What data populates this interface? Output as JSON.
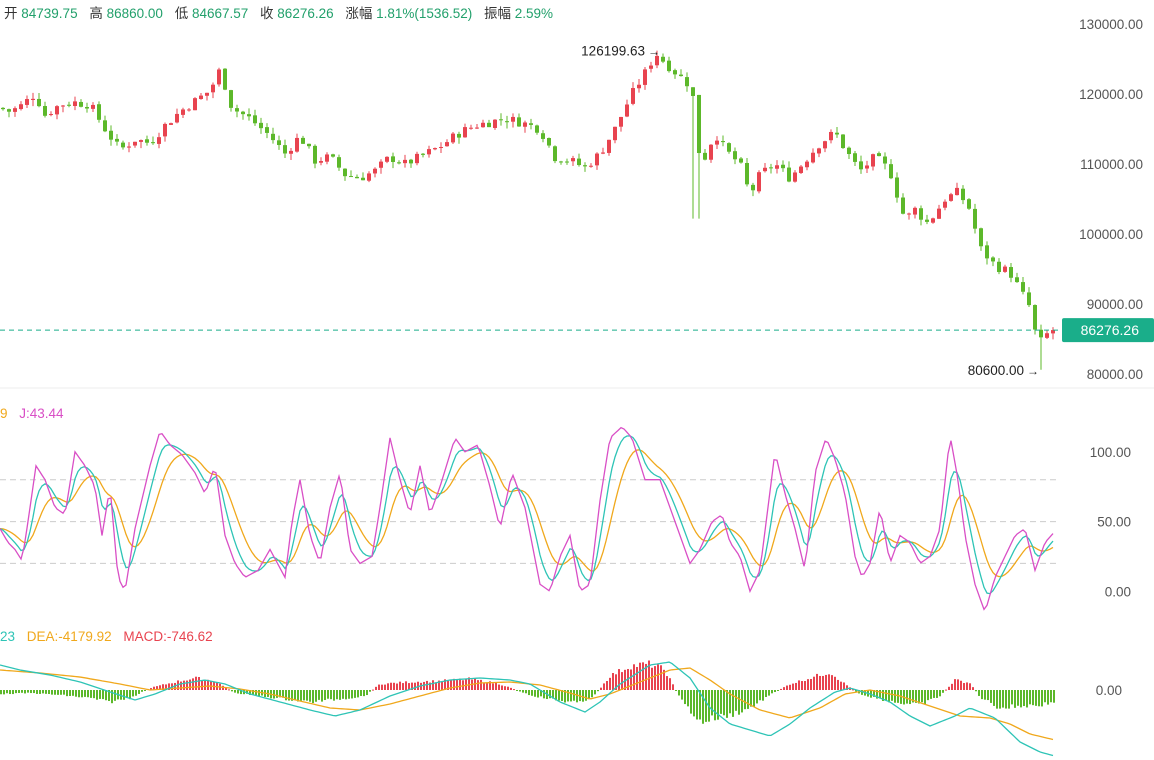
{
  "header": {
    "open_label": "开",
    "open": "84739.75",
    "high_label": "高",
    "high": "86860.00",
    "low_label": "低",
    "low": "84667.57",
    "close_label": "收",
    "close": "86276.26",
    "change_label": "涨幅",
    "change": "1.81%(1536.52)",
    "amplitude_label": "振幅",
    "amplitude": "2.59%"
  },
  "kdj_legend": {
    "d_partial": "9",
    "j": "J:43.44"
  },
  "macd_legend": {
    "dif_partial": "23",
    "dea": "DEA:-4179.92",
    "macd": "MACD:-746.62"
  },
  "colors": {
    "up": "#e8434f",
    "down": "#5cb82a",
    "k": "#2ec4b6",
    "d": "#f0a81c",
    "j": "#d94fc6",
    "last_price_bg": "#1aae8a"
  },
  "chart_data": [
    {
      "type": "candlestick",
      "ylim": [
        78000,
        132000
      ],
      "y_ticks": [
        "130000.00",
        "120000.00",
        "110000.00",
        "100000.00",
        "90000.00",
        "80000.00"
      ],
      "y_tick_values": [
        130000,
        120000,
        110000,
        100000,
        90000,
        80000
      ],
      "anchors": [
        [
          0,
          118000
        ],
        [
          10,
          117500
        ],
        [
          20,
          118200
        ],
        [
          35,
          120000
        ],
        [
          45,
          117000
        ],
        [
          60,
          118500
        ],
        [
          75,
          118800
        ],
        [
          90,
          118500
        ],
        [
          105,
          115000
        ],
        [
          120,
          112000
        ],
        [
          135,
          113500
        ],
        [
          150,
          113000
        ],
        [
          165,
          115500
        ],
        [
          180,
          117500
        ],
        [
          195,
          119000
        ],
        [
          210,
          120500
        ],
        [
          220,
          123500
        ],
        [
          232,
          118000
        ],
        [
          250,
          116500
        ],
        [
          270,
          114000
        ],
        [
          285,
          111500
        ],
        [
          300,
          114000
        ],
        [
          315,
          110500
        ],
        [
          330,
          111000
        ],
        [
          345,
          108500
        ],
        [
          360,
          108000
        ],
        [
          375,
          109000
        ],
        [
          390,
          111000
        ],
        [
          405,
          110000
        ],
        [
          420,
          111000
        ],
        [
          440,
          112500
        ],
        [
          460,
          114500
        ],
        [
          475,
          115500
        ],
        [
          490,
          116000
        ],
        [
          505,
          116500
        ],
        [
          520,
          116000
        ],
        [
          540,
          115000
        ],
        [
          555,
          111000
        ],
        [
          570,
          110500
        ],
        [
          585,
          109500
        ],
        [
          600,
          111500
        ],
        [
          615,
          115000
        ],
        [
          630,
          119500
        ],
        [
          645,
          123000
        ],
        [
          656,
          125800
        ],
        [
          665,
          124500
        ],
        [
          680,
          122500
        ],
        [
          692,
          121000
        ],
        [
          698,
          112000
        ],
        [
          705,
          111000
        ],
        [
          715,
          114500
        ],
        [
          725,
          112000
        ],
        [
          740,
          110000
        ],
        [
          750,
          105500
        ],
        [
          760,
          108500
        ],
        [
          775,
          110000
        ],
        [
          790,
          108000
        ],
        [
          805,
          110500
        ],
        [
          820,
          113000
        ],
        [
          835,
          114500
        ],
        [
          850,
          111000
        ],
        [
          860,
          109000
        ],
        [
          875,
          111000
        ],
        [
          890,
          109000
        ],
        [
          905,
          102000
        ],
        [
          915,
          103500
        ],
        [
          928,
          101500
        ],
        [
          945,
          105000
        ],
        [
          958,
          106000
        ],
        [
          970,
          103500
        ],
        [
          980,
          98000
        ],
        [
          995,
          95500
        ],
        [
          1010,
          94500
        ],
        [
          1020,
          92000
        ],
        [
          1030,
          89500
        ],
        [
          1038,
          84000
        ],
        [
          1045,
          85500
        ],
        [
          1055,
          86276
        ]
      ],
      "high_price": "126199.63",
      "high_price_value": 126199.63,
      "low_price": "80600.00",
      "low_price_value": 80600,
      "last_price": "86276.26",
      "last_price_value": 86276.26
    },
    {
      "type": "line",
      "name": "KDJ",
      "ylim": [
        -22,
        130
      ],
      "y_ticks": [
        "100.00",
        "50.00",
        "0.00"
      ],
      "y_tick_values": [
        100,
        50,
        0
      ],
      "reference_lines": [
        80,
        50,
        20
      ],
      "j_anchors": [
        [
          0,
          45
        ],
        [
          8,
          35
        ],
        [
          15,
          30
        ],
        [
          22,
          22
        ],
        [
          28,
          50
        ],
        [
          36,
          90
        ],
        [
          45,
          80
        ],
        [
          55,
          60
        ],
        [
          65,
          55
        ],
        [
          75,
          100
        ],
        [
          85,
          90
        ],
        [
          95,
          75
        ],
        [
          102,
          40
        ],
        [
          110,
          75
        ],
        [
          118,
          10
        ],
        [
          125,
          0
        ],
        [
          135,
          45
        ],
        [
          150,
          90
        ],
        [
          160,
          115
        ],
        [
          170,
          105
        ],
        [
          182,
          98
        ],
        [
          195,
          85
        ],
        [
          205,
          70
        ],
        [
          215,
          90
        ],
        [
          225,
          40
        ],
        [
          235,
          20
        ],
        [
          245,
          10
        ],
        [
          258,
          15
        ],
        [
          270,
          30
        ],
        [
          285,
          10
        ],
        [
          292,
          50
        ],
        [
          300,
          80
        ],
        [
          310,
          40
        ],
        [
          320,
          20
        ],
        [
          330,
          60
        ],
        [
          340,
          85
        ],
        [
          350,
          30
        ],
        [
          360,
          20
        ],
        [
          372,
          25
        ],
        [
          380,
          60
        ],
        [
          390,
          110
        ],
        [
          400,
          80
        ],
        [
          410,
          55
        ],
        [
          420,
          90
        ],
        [
          430,
          55
        ],
        [
          440,
          75
        ],
        [
          455,
          110
        ],
        [
          465,
          100
        ],
        [
          478,
          105
        ],
        [
          490,
          75
        ],
        [
          500,
          45
        ],
        [
          512,
          85
        ],
        [
          525,
          60
        ],
        [
          540,
          5
        ],
        [
          550,
          0
        ],
        [
          560,
          25
        ],
        [
          570,
          40
        ],
        [
          580,
          0
        ],
        [
          590,
          5
        ],
        [
          600,
          65
        ],
        [
          610,
          110
        ],
        [
          622,
          118
        ],
        [
          632,
          110
        ],
        [
          645,
          80
        ],
        [
          660,
          80
        ],
        [
          670,
          60
        ],
        [
          680,
          40
        ],
        [
          690,
          20
        ],
        [
          700,
          30
        ],
        [
          712,
          50
        ],
        [
          722,
          55
        ],
        [
          730,
          35
        ],
        [
          740,
          25
        ],
        [
          750,
          0
        ],
        [
          760,
          15
        ],
        [
          775,
          100
        ],
        [
          785,
          70
        ],
        [
          795,
          45
        ],
        [
          805,
          15
        ],
        [
          815,
          85
        ],
        [
          826,
          110
        ],
        [
          835,
          95
        ],
        [
          845,
          70
        ],
        [
          855,
          25
        ],
        [
          862,
          10
        ],
        [
          870,
          20
        ],
        [
          880,
          60
        ],
        [
          890,
          20
        ],
        [
          900,
          40
        ],
        [
          910,
          35
        ],
        [
          920,
          20
        ],
        [
          930,
          25
        ],
        [
          940,
          45
        ],
        [
          950,
          112
        ],
        [
          958,
          80
        ],
        [
          965,
          40
        ],
        [
          975,
          5
        ],
        [
          985,
          -15
        ],
        [
          995,
          10
        ],
        [
          1005,
          25
        ],
        [
          1015,
          40
        ],
        [
          1025,
          45
        ],
        [
          1035,
          15
        ],
        [
          1045,
          35
        ],
        [
          1055,
          43
        ]
      ],
      "series": [
        {
          "name": "J:43.44",
          "color": "#d94fc6",
          "role": "j"
        },
        {
          "color": "#2ec4b6",
          "role": "k"
        },
        {
          "color": "#f0a81c",
          "role": "d"
        }
      ]
    },
    {
      "type": "bar",
      "name": "MACD",
      "ylim": [
        -7000,
        4000
      ],
      "y_ticks": [
        "0.00"
      ],
      "y_tick_values": [
        0
      ],
      "hist_anchors": [
        [
          0,
          -400
        ],
        [
          30,
          -300
        ],
        [
          60,
          -500
        ],
        [
          90,
          -800
        ],
        [
          110,
          -1200
        ],
        [
          130,
          -800
        ],
        [
          150,
          200
        ],
        [
          175,
          800
        ],
        [
          195,
          1200
        ],
        [
          215,
          900
        ],
        [
          235,
          -300
        ],
        [
          260,
          -600
        ],
        [
          285,
          -900
        ],
        [
          310,
          -1200
        ],
        [
          340,
          -900
        ],
        [
          365,
          -600
        ],
        [
          380,
          600
        ],
        [
          410,
          800
        ],
        [
          440,
          900
        ],
        [
          470,
          1100
        ],
        [
          500,
          600
        ],
        [
          530,
          -500
        ],
        [
          555,
          -1000
        ],
        [
          580,
          -1300
        ],
        [
          595,
          -500
        ],
        [
          610,
          1400
        ],
        [
          630,
          2400
        ],
        [
          650,
          2600
        ],
        [
          665,
          2000
        ],
        [
          680,
          -800
        ],
        [
          700,
          -3200
        ],
        [
          715,
          -2800
        ],
        [
          730,
          -2500
        ],
        [
          750,
          -1800
        ],
        [
          770,
          -500
        ],
        [
          790,
          600
        ],
        [
          810,
          1200
        ],
        [
          830,
          1800
        ],
        [
          845,
          600
        ],
        [
          860,
          -400
        ],
        [
          880,
          -900
        ],
        [
          900,
          -1300
        ],
        [
          920,
          -1500
        ],
        [
          940,
          -600
        ],
        [
          955,
          1000
        ],
        [
          970,
          700
        ],
        [
          980,
          -700
        ],
        [
          1000,
          -1800
        ],
        [
          1020,
          -1600
        ],
        [
          1040,
          -1500
        ],
        [
          1055,
          -1200
        ]
      ],
      "dif_anchors": [
        [
          0,
          2500
        ],
        [
          20,
          2000
        ],
        [
          50,
          1500
        ],
        [
          80,
          800
        ],
        [
          110,
          -200
        ],
        [
          135,
          -1000
        ],
        [
          155,
          -400
        ],
        [
          180,
          600
        ],
        [
          205,
          1000
        ],
        [
          225,
          600
        ],
        [
          250,
          -400
        ],
        [
          280,
          -1200
        ],
        [
          310,
          -2000
        ],
        [
          335,
          -2600
        ],
        [
          360,
          -2000
        ],
        [
          390,
          -600
        ],
        [
          420,
          400
        ],
        [
          450,
          1000
        ],
        [
          480,
          1200
        ],
        [
          510,
          1000
        ],
        [
          530,
          600
        ],
        [
          560,
          -1200
        ],
        [
          585,
          -2200
        ],
        [
          600,
          -1200
        ],
        [
          620,
          600
        ],
        [
          650,
          2500
        ],
        [
          670,
          2800
        ],
        [
          690,
          1200
        ],
        [
          710,
          -1800
        ],
        [
          730,
          -3400
        ],
        [
          750,
          -4000
        ],
        [
          770,
          -4600
        ],
        [
          790,
          -3400
        ],
        [
          810,
          -1800
        ],
        [
          835,
          -200
        ],
        [
          850,
          200
        ],
        [
          870,
          -400
        ],
        [
          890,
          -1200
        ],
        [
          910,
          -2600
        ],
        [
          930,
          -3600
        ],
        [
          955,
          -2600
        ],
        [
          970,
          -1800
        ],
        [
          995,
          -2800
        ],
        [
          1020,
          -5200
        ],
        [
          1040,
          -6200
        ],
        [
          1055,
          -6600
        ]
      ],
      "dea_anchors": [
        [
          0,
          2000
        ],
        [
          40,
          1700
        ],
        [
          80,
          1300
        ],
        [
          120,
          600
        ],
        [
          150,
          0
        ],
        [
          180,
          200
        ],
        [
          210,
          400
        ],
        [
          240,
          100
        ],
        [
          270,
          -400
        ],
        [
          300,
          -1100
        ],
        [
          330,
          -1800
        ],
        [
          360,
          -2000
        ],
        [
          390,
          -1400
        ],
        [
          420,
          -600
        ],
        [
          450,
          200
        ],
        [
          480,
          700
        ],
        [
          510,
          800
        ],
        [
          540,
          500
        ],
        [
          570,
          -300
        ],
        [
          590,
          -900
        ],
        [
          610,
          -400
        ],
        [
          640,
          800
        ],
        [
          670,
          2000
        ],
        [
          690,
          2200
        ],
        [
          710,
          1000
        ],
        [
          730,
          -400
        ],
        [
          760,
          -2000
        ],
        [
          790,
          -2800
        ],
        [
          820,
          -1800
        ],
        [
          845,
          -400
        ],
        [
          870,
          0
        ],
        [
          900,
          -600
        ],
        [
          930,
          -1600
        ],
        [
          960,
          -2600
        ],
        [
          990,
          -2800
        ],
        [
          1010,
          -3400
        ],
        [
          1030,
          -4400
        ],
        [
          1055,
          -5000
        ]
      ],
      "series": [
        {
          "name": "MACD:-746.62",
          "role": "histogram"
        },
        {
          "color": "#2ec4b6",
          "role": "dif"
        },
        {
          "name": "DEA:-4179.92",
          "color": "#f0a81c",
          "role": "dea"
        }
      ]
    }
  ]
}
